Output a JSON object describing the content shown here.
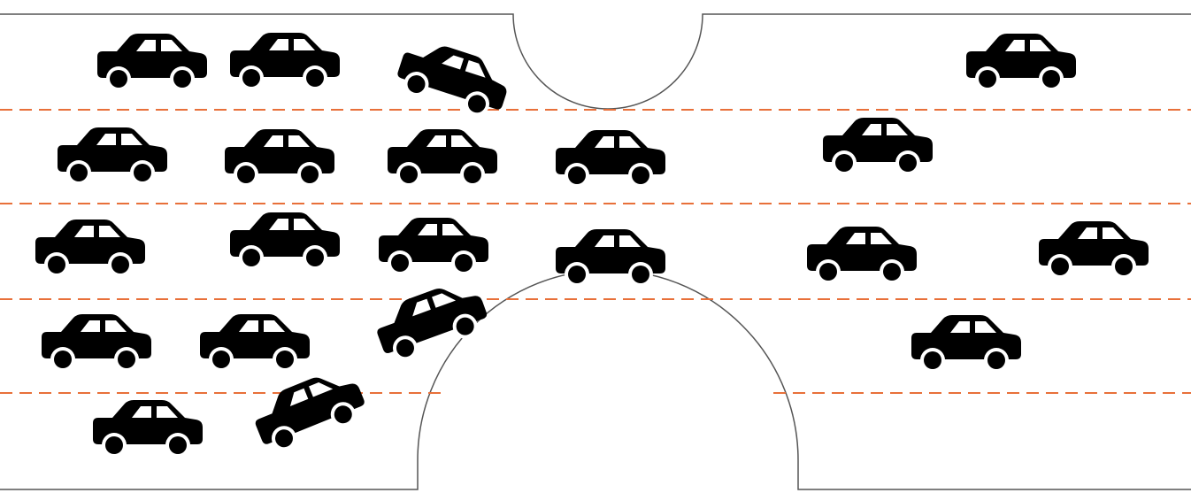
{
  "diagram": {
    "type": "traffic-bottleneck",
    "lanes": 5,
    "colors": {
      "road_edge": "#555555",
      "lane_divider": "#e8703a",
      "car": "#000000",
      "background": "#ffffff"
    },
    "icons": {
      "car": "car-icon"
    },
    "cars": [
      {
        "id": "car-1",
        "lane": 1,
        "state": "queued"
      },
      {
        "id": "car-2",
        "lane": 1,
        "state": "queued"
      },
      {
        "id": "car-3",
        "lane": 1,
        "state": "merging"
      },
      {
        "id": "car-4",
        "lane": 1,
        "state": "through"
      },
      {
        "id": "car-5",
        "lane": 2,
        "state": "queued"
      },
      {
        "id": "car-6",
        "lane": 2,
        "state": "queued"
      },
      {
        "id": "car-7",
        "lane": 2,
        "state": "queued"
      },
      {
        "id": "car-8",
        "lane": 2,
        "state": "queued"
      },
      {
        "id": "car-9",
        "lane": 2,
        "state": "through"
      },
      {
        "id": "car-10",
        "lane": 3,
        "state": "queued"
      },
      {
        "id": "car-11",
        "lane": 3,
        "state": "queued"
      },
      {
        "id": "car-12",
        "lane": 3,
        "state": "queued"
      },
      {
        "id": "car-13",
        "lane": 3,
        "state": "queued"
      },
      {
        "id": "car-14",
        "lane": 3,
        "state": "through"
      },
      {
        "id": "car-15",
        "lane": 3,
        "state": "through"
      },
      {
        "id": "car-16",
        "lane": 4,
        "state": "queued"
      },
      {
        "id": "car-17",
        "lane": 4,
        "state": "queued"
      },
      {
        "id": "car-18",
        "lane": 4,
        "state": "merging"
      },
      {
        "id": "car-19",
        "lane": 4,
        "state": "through"
      },
      {
        "id": "car-20",
        "lane": 5,
        "state": "queued"
      },
      {
        "id": "car-21",
        "lane": 5,
        "state": "merging"
      }
    ]
  }
}
